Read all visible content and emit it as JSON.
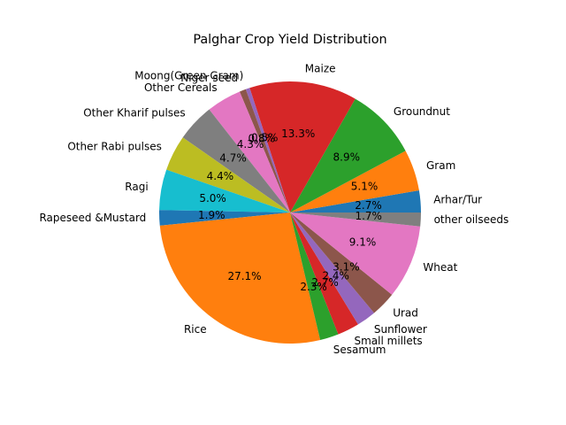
{
  "chart_data": {
    "type": "pie",
    "title": "Palghar Crop Yield Distribution",
    "start_angle_deg": 0,
    "direction": "counterclockwise",
    "categories": [
      "Arhar/Tur",
      "Gram",
      "Groundnut",
      "Maize",
      "Moong(Green Gram)",
      "Niger seed",
      "Other Cereals",
      "Other Kharif pulses",
      "Other Rabi pulses",
      "Ragi",
      "Rapeseed &Mustard",
      "Rice",
      "Sesamum",
      "Small millets",
      "Sunflower",
      "Urad",
      "Wheat",
      "other oilseeds"
    ],
    "values": [
      2.7,
      5.1,
      8.9,
      13.3,
      0.5,
      0.8,
      4.3,
      4.7,
      4.4,
      5.0,
      1.9,
      27.1,
      2.3,
      2.7,
      2.4,
      3.1,
      9.1,
      1.7
    ],
    "percent_labels": [
      "2.7%",
      "5.1%",
      "8.9%",
      "13.3%",
      "0.5%",
      "0.8%",
      "4.3%",
      "4.7%",
      "4.4%",
      "5.0%",
      "1.9%",
      "27.1%",
      "2.3%",
      "2.7%",
      "2.4%",
      "3.1%",
      "9.1%",
      "1.7%"
    ],
    "colors": [
      "#1f77b4",
      "#ff7f0e",
      "#2ca02c",
      "#d62728",
      "#9467bd",
      "#8c564b",
      "#e377c2",
      "#7f7f7f",
      "#bcbd22",
      "#17becf",
      "#1f77b4",
      "#ff7f0e",
      "#2ca02c",
      "#d62728",
      "#9467bd",
      "#8c564b",
      "#e377c2",
      "#7f7f7f"
    ]
  }
}
